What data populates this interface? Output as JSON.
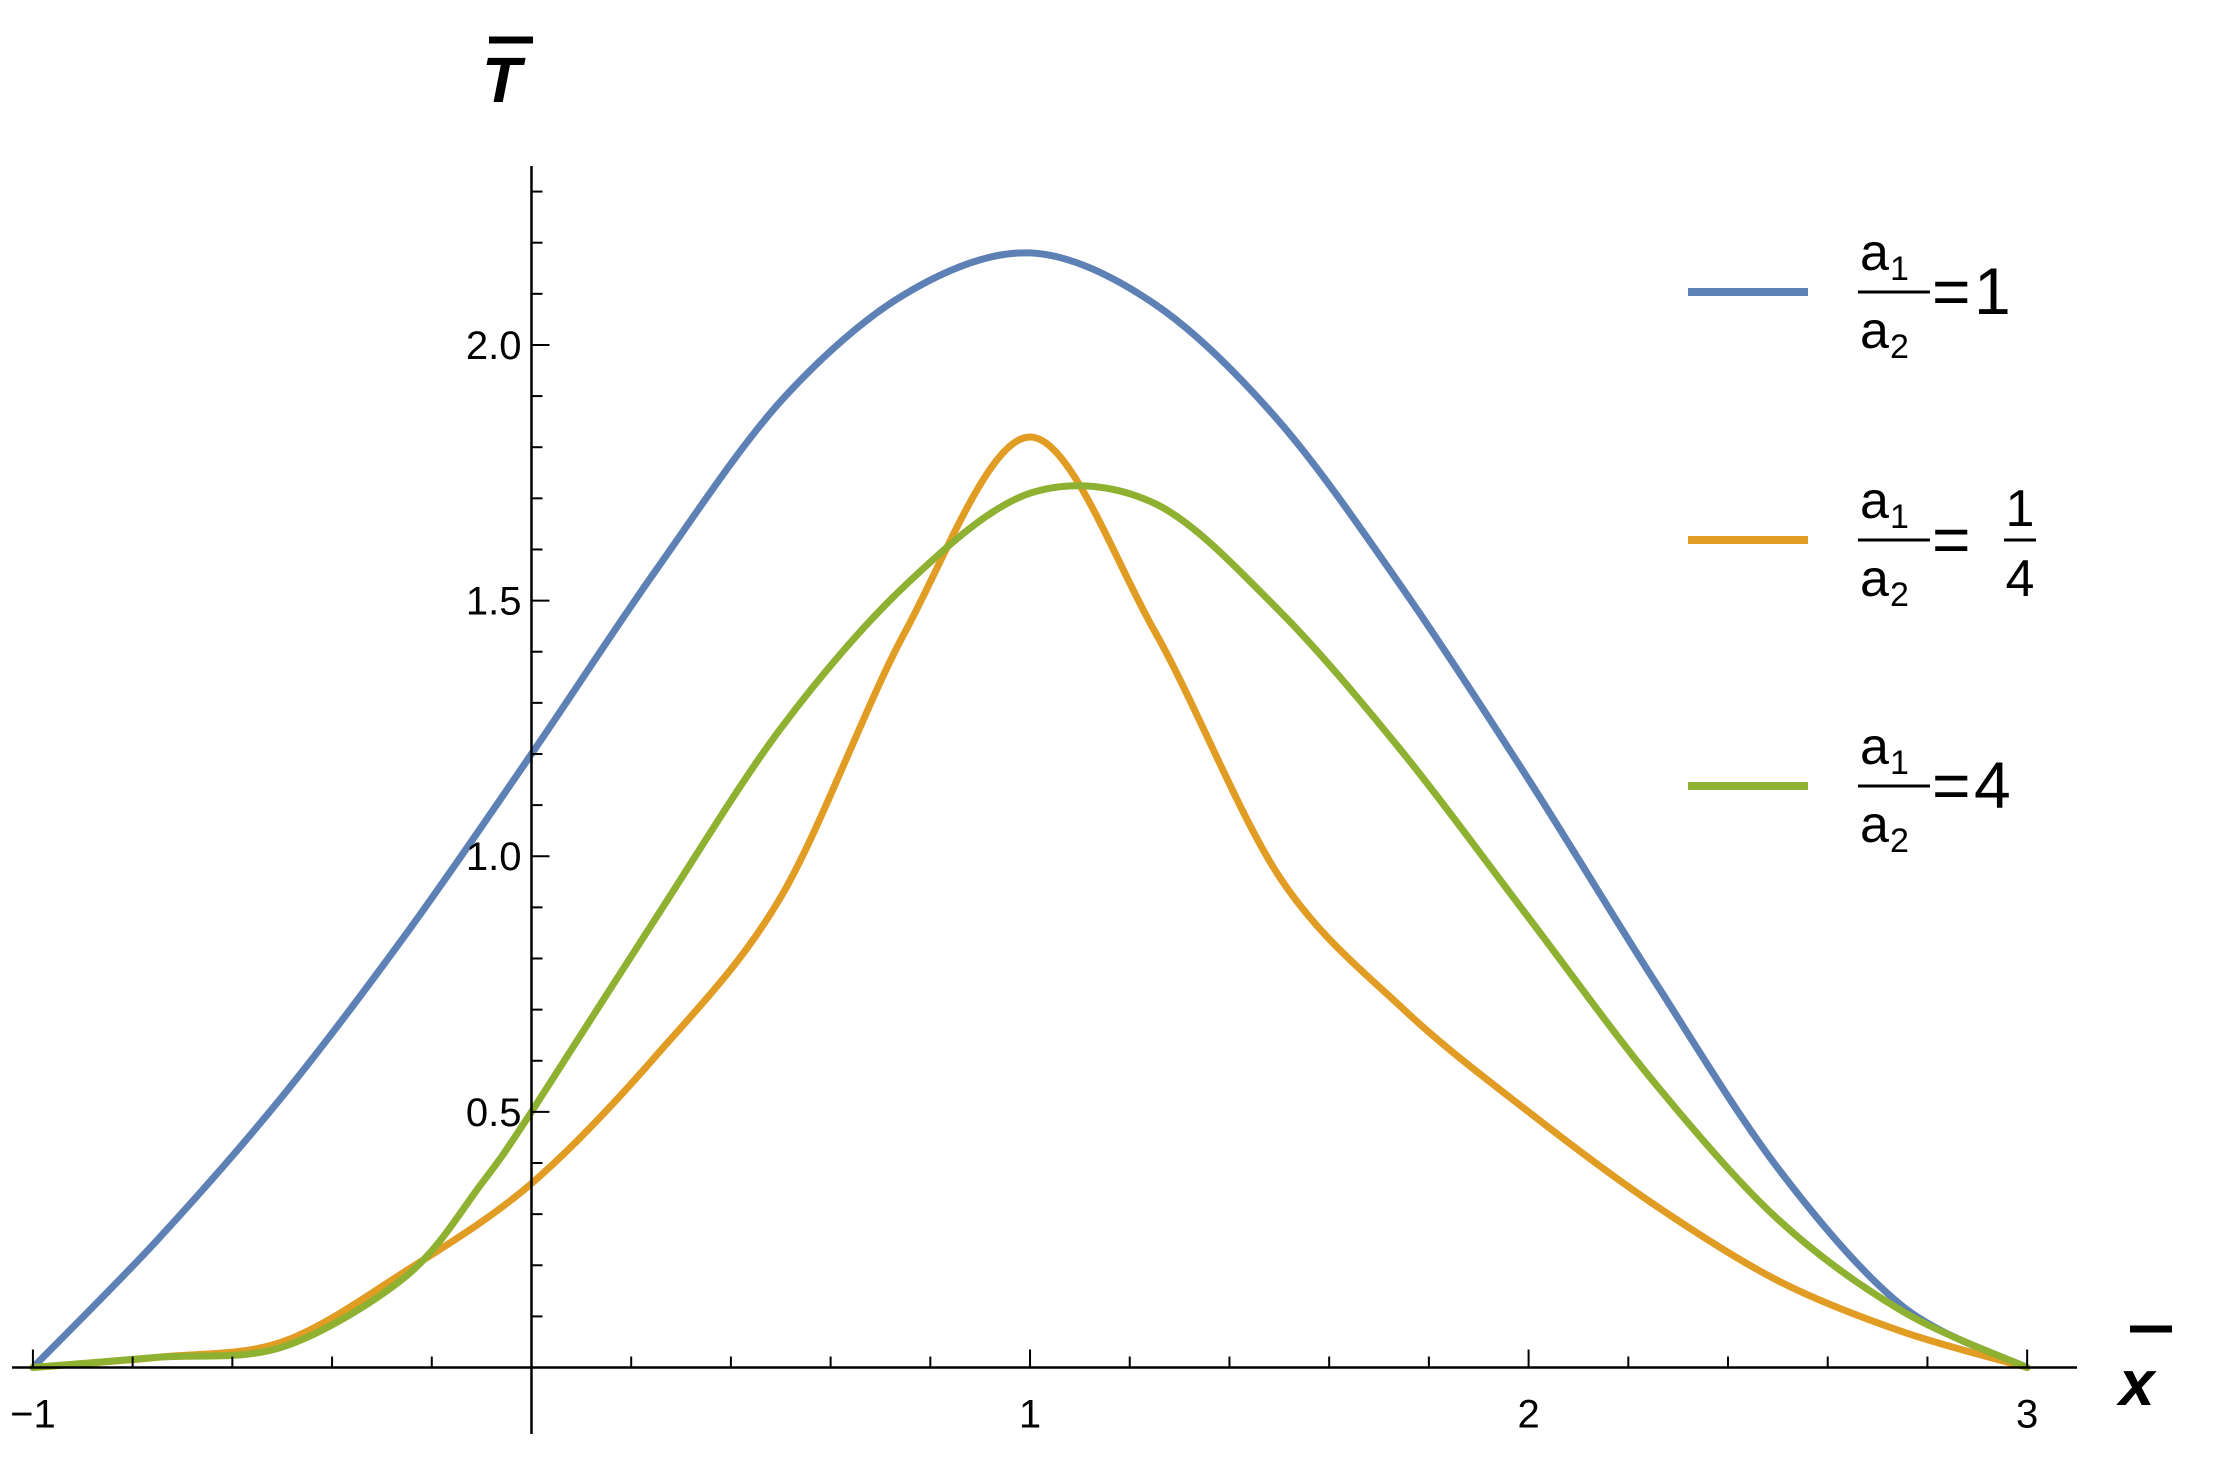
{
  "chart_data": {
    "type": "line",
    "xlabel": "x",
    "ylabel": "T",
    "xlim": [
      -1.05,
      3.1
    ],
    "ylim": [
      -0.13,
      2.35
    ],
    "x_ticks": [
      {
        "value": -1,
        "label": "−1"
      },
      {
        "value": 1,
        "label": "1"
      },
      {
        "value": 2,
        "label": "2"
      },
      {
        "value": 3,
        "label": "3"
      }
    ],
    "y_ticks": [
      {
        "value": 0.5,
        "label": "0.5"
      },
      {
        "value": 1.0,
        "label": "1.0"
      },
      {
        "value": 1.5,
        "label": "1.5"
      },
      {
        "value": 2.0,
        "label": "2.0"
      }
    ],
    "grid": false,
    "legend_position": "right",
    "series": [
      {
        "legend": {
          "num": "a",
          "num_sub": "1",
          "den": "a",
          "den_sub": "2",
          "eq": "=",
          "value": "1",
          "value_den": ""
        },
        "color": "#5e81b5",
        "x": [
          -1,
          -0.75,
          -0.5,
          -0.25,
          0,
          0.25,
          0.5,
          0.75,
          1,
          1.25,
          1.5,
          1.75,
          2,
          2.25,
          2.5,
          2.75,
          3
        ],
        "y": [
          0,
          0.25,
          0.53,
          0.85,
          1.2,
          1.56,
          1.89,
          2.1,
          2.18,
          2.08,
          1.85,
          1.52,
          1.15,
          0.76,
          0.39,
          0.12,
          0
        ]
      },
      {
        "legend": {
          "num": "a",
          "num_sub": "1",
          "den": "a",
          "den_sub": "2",
          "eq": "=",
          "value": "1",
          "value_den": "4"
        },
        "color": "#e19c24",
        "x": [
          -1,
          -0.75,
          -0.5,
          -0.25,
          0,
          0.25,
          0.5,
          0.75,
          1,
          1.25,
          1.5,
          1.75,
          2,
          2.25,
          2.5,
          2.75,
          3
        ],
        "y": [
          0,
          0.02,
          0.05,
          0.19,
          0.36,
          0.61,
          0.92,
          1.44,
          1.82,
          1.44,
          0.96,
          0.7,
          0.5,
          0.32,
          0.17,
          0.07,
          0
        ]
      },
      {
        "legend": {
          "num": "a",
          "num_sub": "1",
          "den": "a",
          "den_sub": "2",
          "eq": "=",
          "value": "4",
          "value_den": ""
        },
        "color": "#8fb131",
        "x": [
          -1,
          -0.75,
          -0.5,
          -0.25,
          -0.1,
          0,
          0.25,
          0.5,
          0.75,
          1,
          1.25,
          1.5,
          1.75,
          2,
          2.25,
          2.5,
          2.75,
          3
        ],
        "y": [
          0,
          0.02,
          0.04,
          0.18,
          0.36,
          0.5,
          0.88,
          1.25,
          1.53,
          1.71,
          1.69,
          1.48,
          1.2,
          0.88,
          0.56,
          0.29,
          0.11,
          0
        ]
      }
    ]
  }
}
